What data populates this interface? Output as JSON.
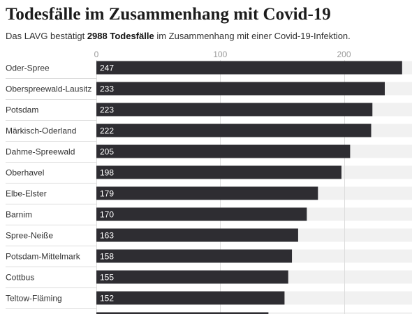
{
  "chart_data": {
    "type": "bar",
    "orientation": "horizontal",
    "title": "Todesfälle im Zusammenhang mit Covid-19",
    "subtitle_parts": [
      "Das LAVG bestätigt ",
      "2988 Todesfälle",
      " im Zusammenhang mit einer Covid-19-Infektion."
    ],
    "categories": [
      "Oder-Spree",
      "Oberspreewald-Lausitz",
      "Potsdam",
      "Märkisch-Oderland",
      "Dahme-Spreewald",
      "Oberhavel",
      "Elbe-Elster",
      "Barnim",
      "Spree-Neiße",
      "Potsdam-Mittelmark",
      "Cottbus",
      "Teltow-Fläming",
      ""
    ],
    "values": [
      247,
      233,
      223,
      222,
      205,
      198,
      179,
      170,
      163,
      158,
      155,
      152,
      139
    ],
    "x_ticks": [
      0,
      100,
      200
    ],
    "xlim": [
      0,
      255
    ],
    "xlabel": "",
    "ylabel": "",
    "grid": true,
    "background_bars": true,
    "colors": {
      "bar": "#2e2d32",
      "background_bar": "#f1f1f1",
      "value_label": "#ffffff",
      "grid": "#dddddd"
    }
  }
}
